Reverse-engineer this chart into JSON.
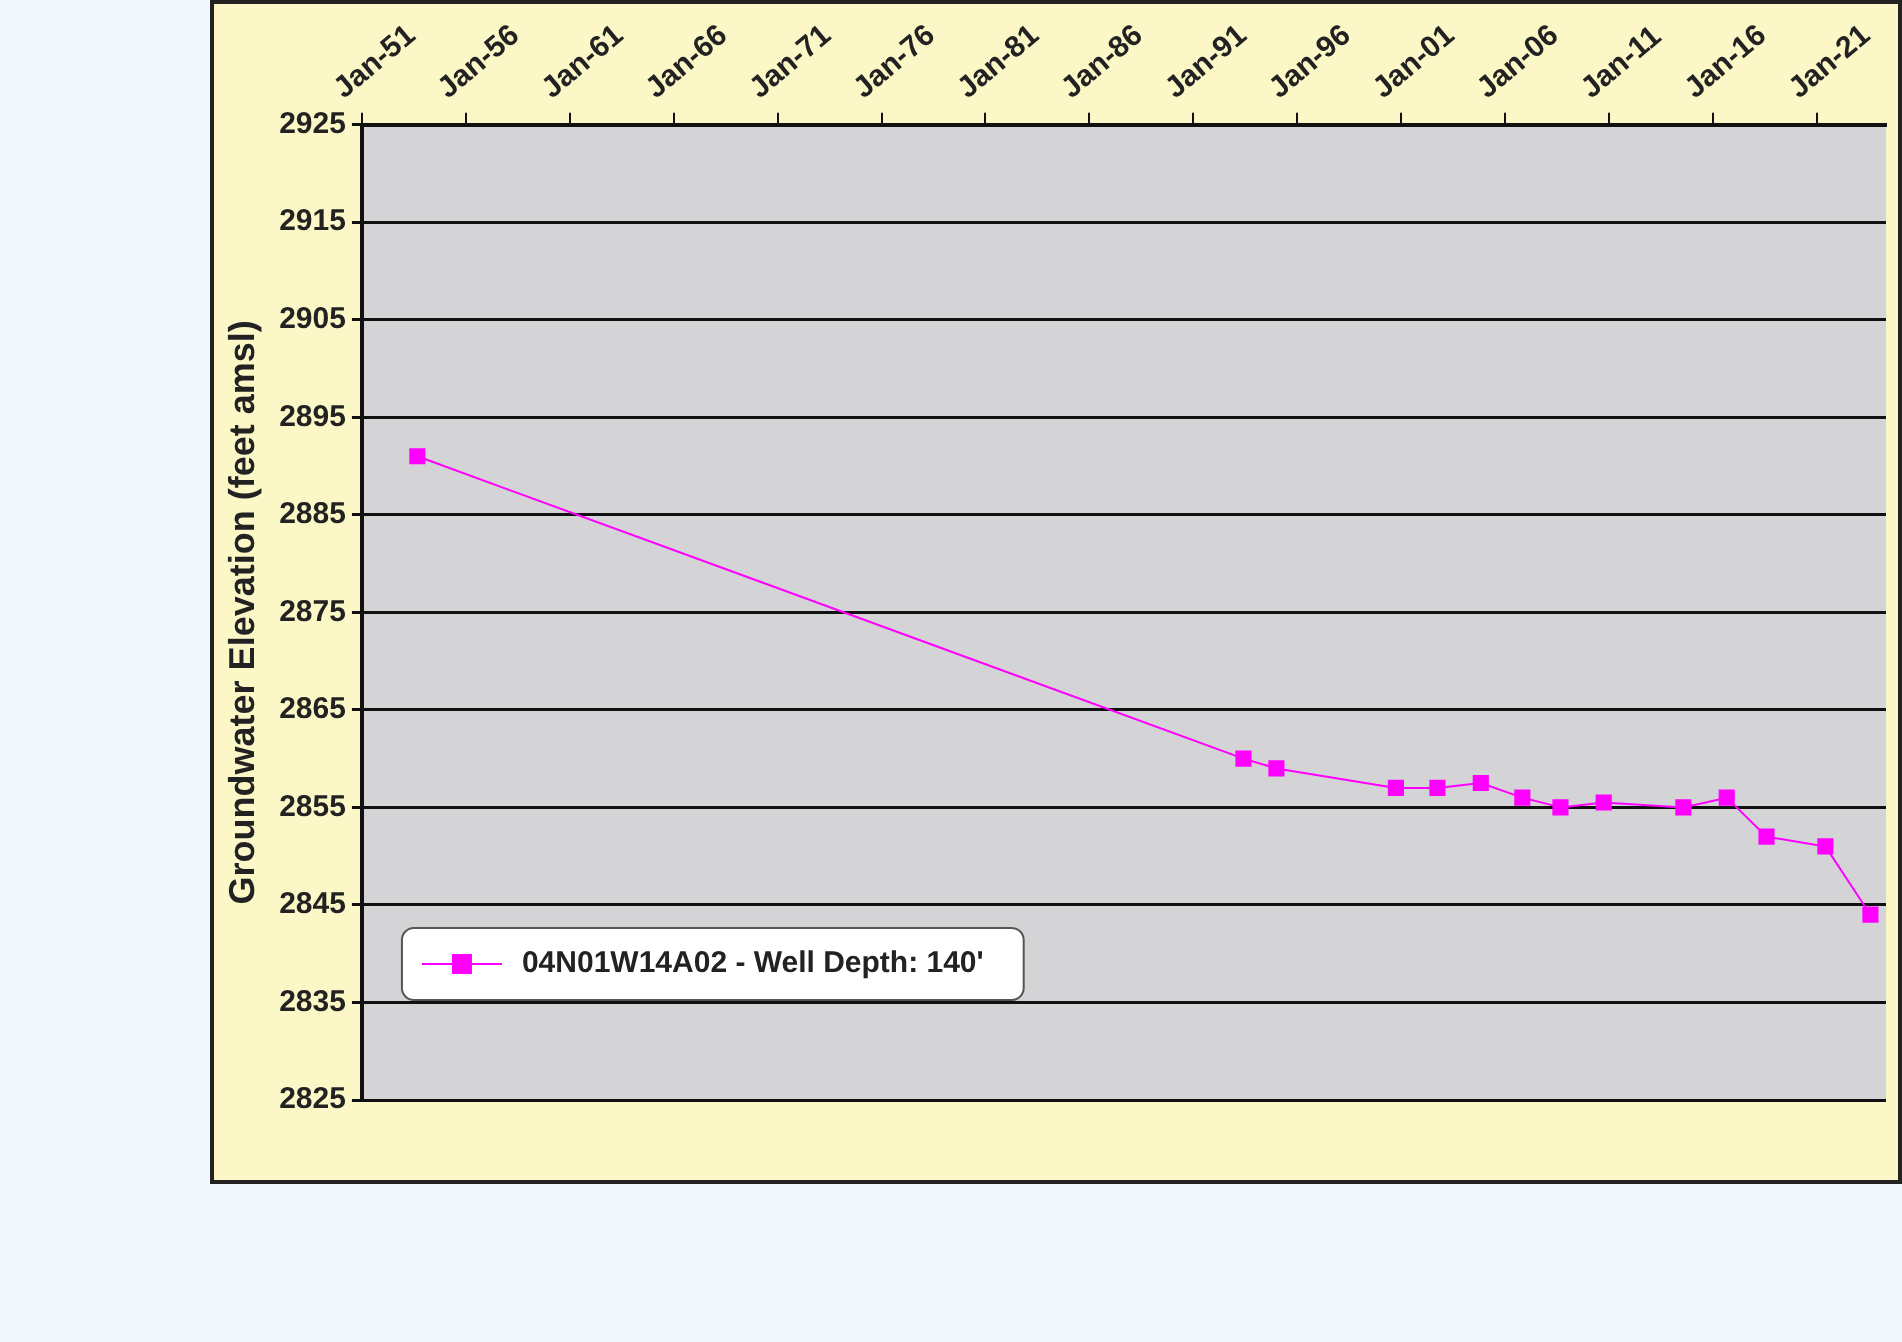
{
  "chart_data": {
    "type": "line",
    "ylabel": "Groundwater Elevation (feet amsl)",
    "xlim": [
      "1951-01",
      "2024-05"
    ],
    "xticks": [
      {
        "value": "1951-01",
        "label": "Jan-51"
      },
      {
        "value": "1956-01",
        "label": "Jan-56"
      },
      {
        "value": "1961-01",
        "label": "Jan-61"
      },
      {
        "value": "1966-01",
        "label": "Jan-66"
      },
      {
        "value": "1971-01",
        "label": "Jan-71"
      },
      {
        "value": "1976-01",
        "label": "Jan-76"
      },
      {
        "value": "1981-01",
        "label": "Jan-81"
      },
      {
        "value": "1986-01",
        "label": "Jan-86"
      },
      {
        "value": "1991-01",
        "label": "Jan-91"
      },
      {
        "value": "1996-01",
        "label": "Jan-96"
      },
      {
        "value": "2001-01",
        "label": "Jan-01"
      },
      {
        "value": "2006-01",
        "label": "Jan-06"
      },
      {
        "value": "2011-01",
        "label": "Jan-11"
      },
      {
        "value": "2016-01",
        "label": "Jan-16"
      },
      {
        "value": "2021-01",
        "label": "Jan-21"
      }
    ],
    "ylim": [
      2825,
      2925
    ],
    "yticks": [
      2825,
      2835,
      2845,
      2855,
      2865,
      2875,
      2885,
      2895,
      2905,
      2915,
      2925
    ],
    "x": [
      "1953-09",
      "1993-06",
      "1995-01",
      "2000-10",
      "2002-10",
      "2004-11",
      "2006-11",
      "2008-09",
      "2010-10",
      "2014-08",
      "2016-09",
      "2018-08",
      "2021-06",
      "2023-08"
    ],
    "series": [
      {
        "name": "04N01W14A02 - Well Depth: 140'",
        "color": "#ff00ff",
        "values": [
          2891,
          2860,
          2859,
          2857,
          2857,
          2857.5,
          2856,
          2855,
          2855.5,
          2855,
          2856,
          2852,
          2851,
          2844
        ]
      }
    ],
    "grid": "y",
    "legend": "bottom left",
    "marker": "square",
    "line_style": "solid"
  }
}
